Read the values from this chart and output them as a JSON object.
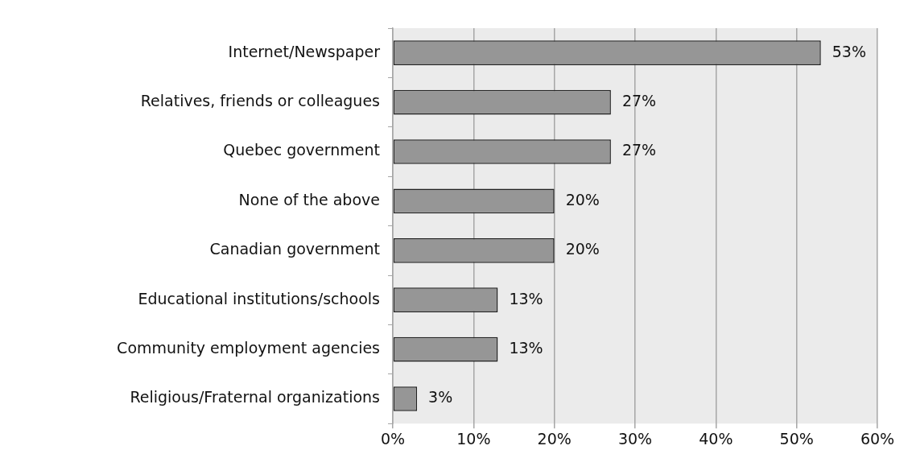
{
  "chart_data": {
    "type": "bar",
    "orientation": "horizontal",
    "categories": [
      "Internet/Newspaper",
      "Relatives, friends or colleagues",
      "Quebec government",
      "None of the above",
      "Canadian government",
      "Educational institutions/schools",
      "Community employment agencies",
      "Religious/Fraternal organizations"
    ],
    "values": [
      53,
      27,
      27,
      20,
      20,
      13,
      13,
      3
    ],
    "value_labels": [
      "53%",
      "27%",
      "27%",
      "20%",
      "20%",
      "13%",
      "13%",
      "3%"
    ],
    "color": "#969696",
    "xlim": [
      0,
      60
    ],
    "xticks": [
      {
        "value": 0,
        "label": "0%"
      },
      {
        "value": 10,
        "label": "10%"
      },
      {
        "value": 20,
        "label": "20%"
      },
      {
        "value": 30,
        "label": "30%"
      },
      {
        "value": 40,
        "label": "40%"
      },
      {
        "value": 50,
        "label": "50%"
      },
      {
        "value": 60,
        "label": "60%"
      }
    ],
    "grid": "x",
    "legend": false
  }
}
